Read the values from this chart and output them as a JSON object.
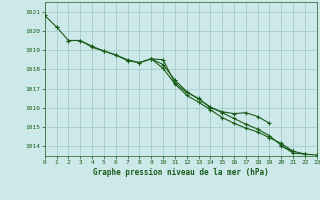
{
  "title": "Graphe pression niveau de la mer (hPa)",
  "bg_color": "#cce8e8",
  "grid_color": "#aacccc",
  "line_color": "#1a5c1a",
  "xlim": [
    0,
    23
  ],
  "ylim": [
    1013.5,
    1021.5
  ],
  "yticks": [
    1014,
    1015,
    1016,
    1017,
    1018,
    1019,
    1020,
    1021
  ],
  "xticks": [
    0,
    1,
    2,
    3,
    4,
    5,
    6,
    7,
    8,
    9,
    10,
    11,
    12,
    13,
    14,
    15,
    16,
    17,
    18,
    19,
    20,
    21,
    22,
    23
  ],
  "line1": {
    "x": [
      0,
      1
    ],
    "y": [
      1020.8,
      1020.2
    ]
  },
  "line2": {
    "x": [
      1,
      2,
      3,
      4,
      5,
      6,
      7,
      8,
      9,
      10,
      11,
      12,
      13,
      14,
      15,
      16,
      17,
      18,
      19
    ],
    "y": [
      1020.2,
      1019.5,
      1019.5,
      1019.2,
      1018.95,
      1018.75,
      1018.5,
      1018.35,
      1018.55,
      1018.5,
      1017.3,
      1016.8,
      1016.5,
      1016.0,
      1015.8,
      1015.7,
      1015.75,
      1015.55,
      1015.2
    ]
  },
  "line3": {
    "x": [
      2,
      3,
      4,
      5,
      6,
      7,
      8,
      9,
      10,
      11,
      12,
      13,
      14,
      15,
      16,
      17,
      18,
      19,
      20,
      21
    ],
    "y": [
      1019.5,
      1019.5,
      1019.15,
      1018.95,
      1018.75,
      1018.45,
      1018.35,
      1018.55,
      1018.05,
      1017.25,
      1016.65,
      1016.3,
      1015.9,
      1015.5,
      1015.2,
      1014.95,
      1014.75,
      1014.45,
      1014.15,
      1013.75
    ]
  },
  "line4": {
    "x": [
      9,
      10,
      11,
      12,
      13,
      14,
      15,
      16,
      17,
      18,
      19,
      20,
      21,
      22
    ],
    "y": [
      1018.55,
      1018.25,
      1017.45,
      1016.85,
      1016.45,
      1016.05,
      1015.75,
      1015.45,
      1015.15,
      1014.9,
      1014.55,
      1014.05,
      1013.65,
      1013.6
    ]
  },
  "line5": {
    "x": [
      20,
      21,
      22,
      23
    ],
    "y": [
      1014.0,
      1013.75,
      1013.6,
      1013.55
    ]
  }
}
